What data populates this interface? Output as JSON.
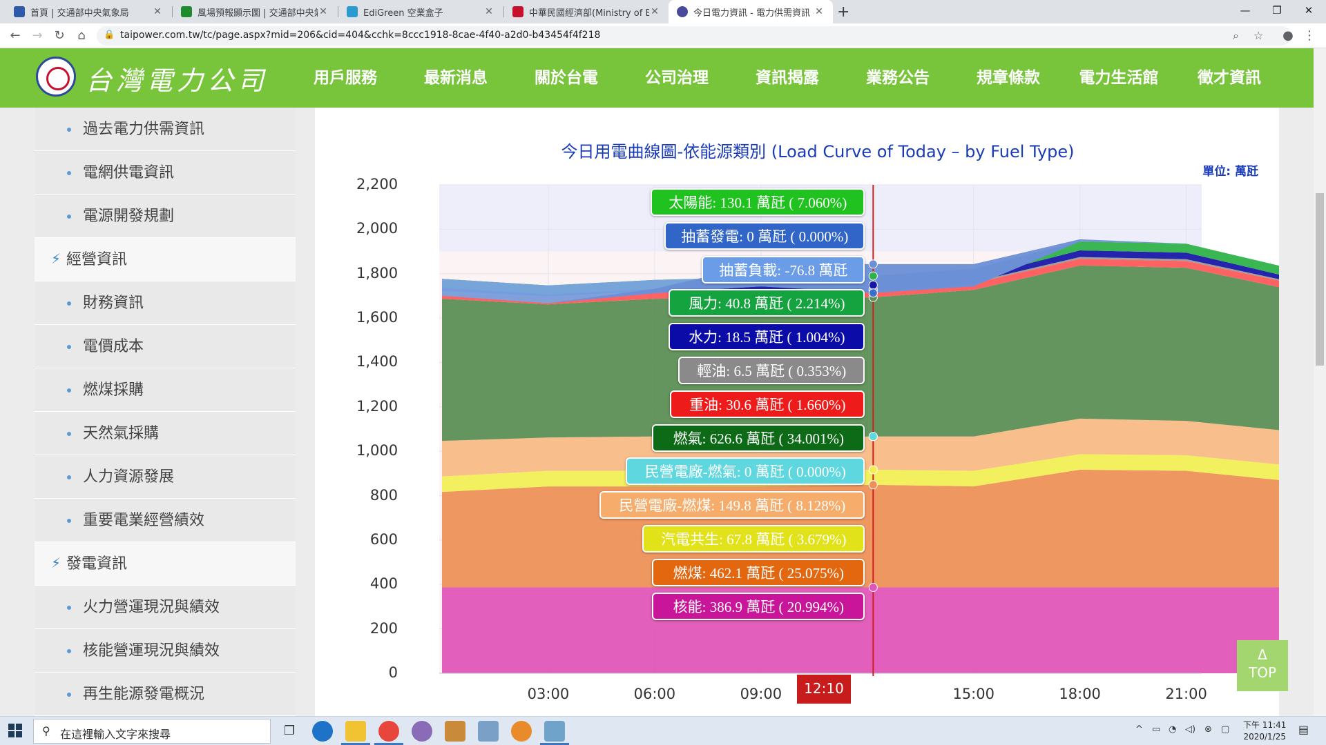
{
  "browser": {
    "tabs": [
      {
        "title": "首頁 | 交通部中央氣象局",
        "color": "#2e5aa7"
      },
      {
        "title": "風場預報顯示圖 | 交通部中央氣象局",
        "color": "#1f8a2e"
      },
      {
        "title": "EdiGreen 空業盒子",
        "color": "#2b9ad1"
      },
      {
        "title": "中華民國經濟部(Ministry of Economic Affairs)",
        "color": "#c8102e"
      },
      {
        "title": "今日電力資訊 - 電力供需資訊 - 台灣電力公司",
        "color": "#4a4a9a"
      }
    ],
    "url": "taipower.com.tw/tc/page.aspx?mid=206&cid=404&cchk=8ccc1918-8cae-4f40-a2d0-b43454f4f218"
  },
  "site": {
    "logo_text": "台灣電力公司",
    "nav": [
      "用戶服務",
      "最新消息",
      "關於台電",
      "公司治理",
      "資訊揭露",
      "業務公告",
      "規章條款",
      "電力生活館",
      "徵才資訊"
    ]
  },
  "sidebar": {
    "items": [
      {
        "label": "過去電力供需資訊",
        "kind": "sub"
      },
      {
        "label": "電網供電資訊",
        "kind": "sub"
      },
      {
        "label": "電源開發規劃",
        "kind": "sub"
      },
      {
        "label": "經營資訊",
        "kind": "head"
      },
      {
        "label": "財務資訊",
        "kind": "sub"
      },
      {
        "label": "電價成本",
        "kind": "sub"
      },
      {
        "label": "燃煤採購",
        "kind": "sub"
      },
      {
        "label": "天然氣採購",
        "kind": "sub"
      },
      {
        "label": "人力資源發展",
        "kind": "sub"
      },
      {
        "label": "重要電業經營績效",
        "kind": "sub"
      },
      {
        "label": "發電資訊",
        "kind": "head"
      },
      {
        "label": "火力營運現況與績效",
        "kind": "sub"
      },
      {
        "label": "核能營運現況與績效",
        "kind": "sub"
      },
      {
        "label": "再生能源發電概況",
        "kind": "sub"
      }
    ]
  },
  "chart": {
    "title": "今日用電曲線圖-依能源類別 (Load Curve of Today – by Fuel Type)",
    "unit": "單位: 萬瓩",
    "current_time": "12:10"
  },
  "chart_data": {
    "type": "area",
    "stacked": true,
    "title": "今日用電曲線圖-依能源類別 (Load Curve of Today – by Fuel Type)",
    "ylabel": "單位: 萬瓩",
    "ylim": [
      0,
      2200
    ],
    "yticks": [
      0,
      200,
      400,
      600,
      800,
      1000,
      1200,
      1400,
      1600,
      1800,
      2000,
      2200
    ],
    "xticks": [
      "03:00",
      "06:00",
      "09:00",
      "12:10",
      "15:00",
      "18:00",
      "21:00"
    ],
    "x": [
      "00:00",
      "03:00",
      "06:00",
      "09:00",
      "12:10",
      "15:00",
      "18:00",
      "21:00",
      "23:50"
    ],
    "series": [
      {
        "name": "核能",
        "color": "#e056b8",
        "values": [
          386.9,
          386.9,
          386.9,
          386.9,
          386.9,
          386.9,
          386.9,
          386.9,
          386.9
        ]
      },
      {
        "name": "燃煤",
        "color": "#ee9157",
        "values": [
          430,
          455,
          455,
          455,
          462.1,
          455,
          530,
          525,
          480
        ]
      },
      {
        "name": "汽電共生",
        "color": "#f1ef55",
        "values": [
          70,
          70,
          70,
          70,
          67.8,
          70,
          70,
          70,
          70
        ]
      },
      {
        "name": "民營電廠-燃煤",
        "color": "#f8bb86",
        "values": [
          160,
          150,
          155,
          150,
          149.8,
          155,
          160,
          155,
          155
        ]
      },
      {
        "name": "民營電廠-燃氣",
        "color": "#5fd9dc",
        "values": [
          0,
          0,
          0,
          0,
          0,
          0,
          0,
          0,
          0
        ]
      },
      {
        "name": "燃氣",
        "color": "#5d8f55",
        "values": [
          640,
          600,
          620,
          630,
          626.6,
          660,
          690,
          690,
          640
        ]
      },
      {
        "name": "重油",
        "color": "#ff5a5a",
        "values": [
          30,
          30,
          30,
          30,
          30.6,
          30,
          30,
          30,
          30
        ]
      },
      {
        "name": "輕油",
        "color": "#9a9a9a",
        "values": [
          5,
          5,
          5,
          6,
          6.5,
          6,
          8,
          8,
          6
        ]
      },
      {
        "name": "水力",
        "color": "#1818a8",
        "values": [
          15,
          10,
          10,
          15,
          18.5,
          20,
          30,
          30,
          20
        ]
      },
      {
        "name": "風力",
        "color": "#2fb24a",
        "values": [
          40,
          40,
          40,
          40,
          40.8,
          40,
          40,
          40,
          40
        ]
      },
      {
        "name": "抽蓄負載",
        "color": "#7aa3e0",
        "values": [
          -76.8,
          -80,
          -60,
          -40,
          -76.8,
          -80,
          0,
          0,
          0
        ]
      },
      {
        "name": "抽蓄發電",
        "color": "#3b6fcc",
        "values": [
          0,
          0,
          0,
          0,
          0,
          0,
          0,
          0,
          0
        ]
      },
      {
        "name": "太陽能",
        "color": "#6b8fd6",
        "values": [
          0,
          0,
          20,
          100,
          130.1,
          100,
          10,
          0,
          0
        ]
      }
    ],
    "tooltip": [
      {
        "label": "太陽能: 130.1 萬瓩 ( 7.060%)",
        "color": "#1fc21f"
      },
      {
        "label": "抽蓄發電: 0 萬瓩 ( 0.000%)",
        "color": "#3166c8"
      },
      {
        "label": "抽蓄負載: -76.8 萬瓩",
        "color": "#6a9ce8"
      },
      {
        "label": "風力: 40.8 萬瓩 ( 2.214%)",
        "color": "#15a340"
      },
      {
        "label": "水力: 18.5 萬瓩 ( 1.004%)",
        "color": "#0b0ba8"
      },
      {
        "label": "輕油: 6.5 萬瓩 ( 0.353%)",
        "color": "#8a8a8a"
      },
      {
        "label": "重油: 30.6 萬瓩 ( 1.660%)",
        "color": "#ee1b1b"
      },
      {
        "label": "燃氣: 626.6 萬瓩 ( 34.001%)",
        "color": "#0d6b17"
      },
      {
        "label": "民營電廠-燃氣: 0 萬瓩 ( 0.000%)",
        "color": "#5ed7de"
      },
      {
        "label": "民營電廠-燃煤: 149.8 萬瓩 ( 8.128%)",
        "color": "#f6ad6b"
      },
      {
        "label": "汽電共生: 67.8 萬瓩 ( 3.679%)",
        "color": "#e2e21b"
      },
      {
        "label": "燃煤: 462.1 萬瓩 ( 25.075%)",
        "color": "#e2670f"
      },
      {
        "label": "核能: 386.9 萬瓩 ( 20.994%)",
        "color": "#c9159a"
      }
    ]
  },
  "top_button": {
    "arrow": "Δ",
    "label": "TOP"
  },
  "taskbar": {
    "search_placeholder": "在這裡輸入文字來搜尋",
    "time": "下午 11:41",
    "date": "2020/1/25"
  }
}
